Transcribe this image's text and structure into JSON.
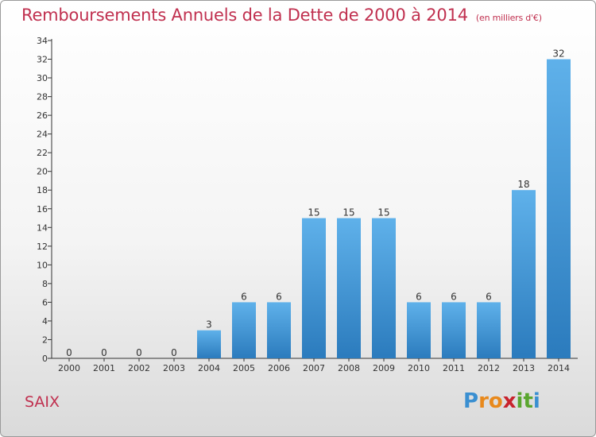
{
  "title": "Remboursements Annuels de la Dette de 2000 à 2014",
  "subtitle": "(en milliers d'€)",
  "commune": "SAIX",
  "logo": {
    "text": "Proxiti",
    "letters": [
      {
        "ch": "P",
        "color": "#3a8fd1"
      },
      {
        "ch": "r",
        "color": "#e8891c"
      },
      {
        "ch": "o",
        "color": "#e8891c"
      },
      {
        "ch": "x",
        "color": "#c8232d"
      },
      {
        "ch": "i",
        "color": "#5aa62f"
      },
      {
        "ch": "t",
        "color": "#5aa62f"
      },
      {
        "ch": "i",
        "color": "#3a8fd1"
      }
    ]
  },
  "colors": {
    "title": "#c0304f",
    "bar_top": "#5fb1ea",
    "bar_bottom": "#2b7bbd",
    "axis": "#333333",
    "text": "#333333"
  },
  "chart_data": {
    "type": "bar",
    "categories": [
      "2000",
      "2001",
      "2002",
      "2003",
      "2004",
      "2005",
      "2006",
      "2007",
      "2008",
      "2009",
      "2010",
      "2011",
      "2012",
      "2013",
      "2014"
    ],
    "values": [
      0,
      0,
      0,
      0,
      3,
      6,
      6,
      15,
      15,
      15,
      6,
      6,
      6,
      18,
      32
    ],
    "data_labels": [
      "0",
      "0",
      "0",
      "0",
      "3",
      "6",
      "6",
      "15",
      "15",
      "15",
      "6",
      "6",
      "6",
      "18",
      "32"
    ],
    "ylim": [
      0,
      34
    ],
    "yticks": [
      0,
      2,
      4,
      6,
      8,
      10,
      12,
      14,
      16,
      18,
      20,
      22,
      24,
      26,
      28,
      30,
      32,
      34
    ],
    "grid": false,
    "xlabel": "",
    "ylabel": ""
  }
}
